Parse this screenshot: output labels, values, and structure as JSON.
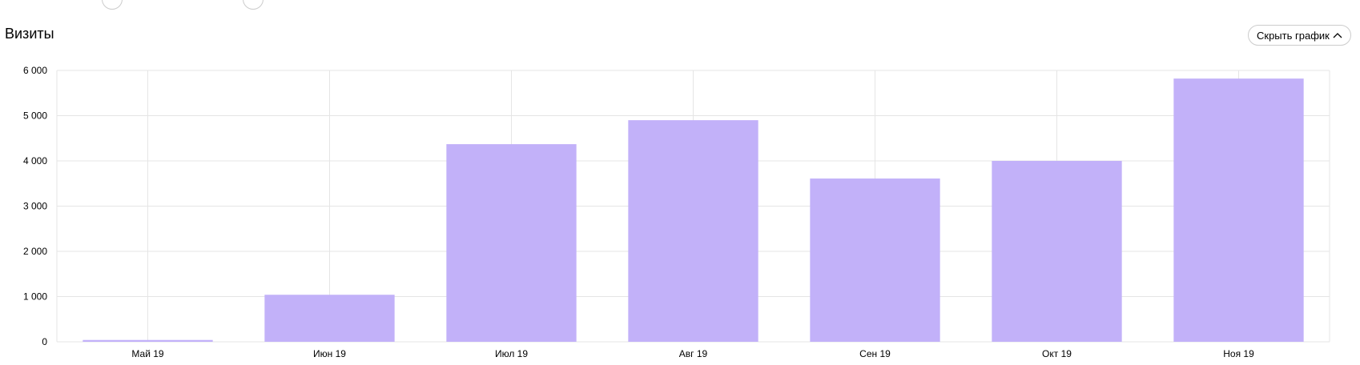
{
  "header": {
    "title": "Визиты",
    "hide_chart_label": "Скрыть график"
  },
  "colors": {
    "bar": "#c2b1f9",
    "grid": "#e5e5e5"
  },
  "chart_data": {
    "type": "bar",
    "title": "Визиты",
    "categories": [
      "Май 19",
      "Июн 19",
      "Июл 19",
      "Авг 19",
      "Сен 19",
      "Окт 19",
      "Ноя 19"
    ],
    "values": [
      40,
      1040,
      4370,
      4900,
      3610,
      4000,
      5820
    ],
    "ylim": [
      0,
      6000
    ],
    "yticks": [
      0,
      1000,
      2000,
      3000,
      4000,
      5000,
      6000
    ],
    "ytick_labels": [
      "0",
      "1 000",
      "2 000",
      "3 000",
      "4 000",
      "5 000",
      "6 000"
    ],
    "grid": true,
    "legend": "none"
  }
}
